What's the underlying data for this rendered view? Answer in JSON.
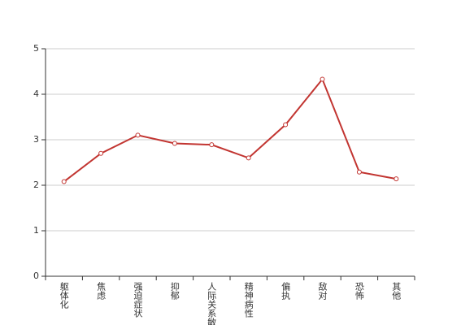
{
  "chart_data": {
    "type": "line",
    "categories": [
      "躯体化",
      "焦虑",
      "强迫症状",
      "抑郁",
      "人际关系敏感",
      "精神病性",
      "偏执",
      "敌对",
      "恐怖",
      "其他"
    ],
    "values": [
      2.08,
      2.7,
      3.1,
      2.92,
      2.89,
      2.6,
      3.33,
      4.33,
      2.29,
      2.14
    ],
    "color": "#c23531",
    "ylim": [
      0,
      5
    ],
    "yticks": [
      0,
      1,
      2,
      3,
      4,
      5
    ],
    "grid": true
  }
}
